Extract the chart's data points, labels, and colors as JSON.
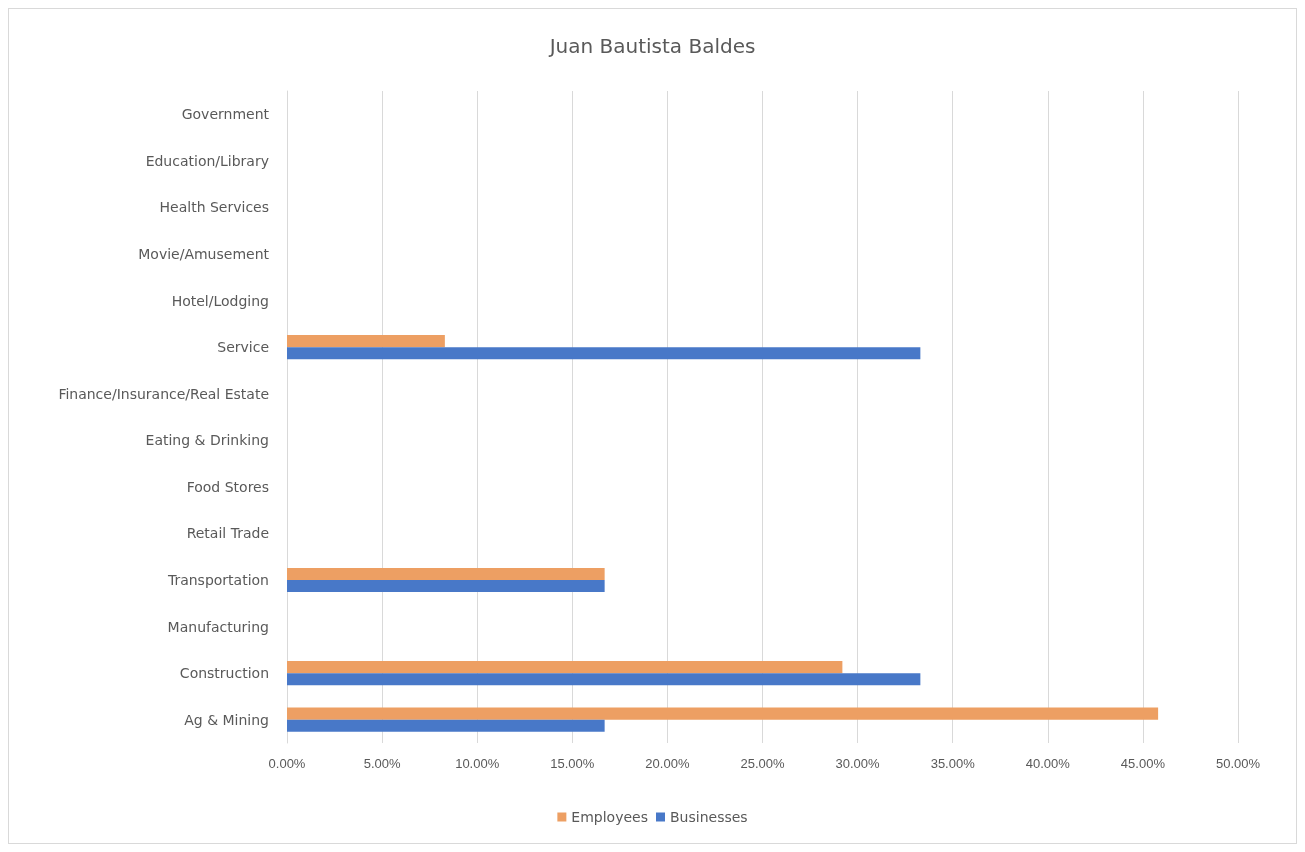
{
  "chart_data": {
    "type": "bar",
    "orientation": "horizontal",
    "title": "Juan Bautista Baldes",
    "categories": [
      "Government",
      "Education/Library",
      "Health Services",
      "Movie/Amusement",
      "Hotel/Lodging",
      "Service",
      "Finance/Insurance/Real Estate",
      "Eating & Drinking",
      "Food Stores",
      "Retail Trade",
      "Transportation",
      "Manufacturing",
      "Construction",
      "Ag & Mining"
    ],
    "series": [
      {
        "name": "Employees",
        "color": "#ed9f63",
        "values": [
          null,
          null,
          null,
          null,
          null,
          8.3,
          null,
          null,
          null,
          null,
          16.7,
          null,
          29.2,
          45.8
        ]
      },
      {
        "name": "Businesses",
        "color": "#4878c8",
        "values": [
          null,
          null,
          null,
          null,
          null,
          33.3,
          null,
          null,
          null,
          null,
          16.7,
          null,
          33.3,
          16.7
        ]
      }
    ],
    "xlim": [
      0,
      50
    ],
    "xticks": [
      {
        "value": 0,
        "label": "0.00%"
      },
      {
        "value": 5,
        "label": "5.00%"
      },
      {
        "value": 10,
        "label": "10.00%"
      },
      {
        "value": 15,
        "label": "15.00%"
      },
      {
        "value": 20,
        "label": "20.00%"
      },
      {
        "value": 25,
        "label": "25.00%"
      },
      {
        "value": 30,
        "label": "30.00%"
      },
      {
        "value": 35,
        "label": "35.00%"
      },
      {
        "value": 40,
        "label": "40.00%"
      },
      {
        "value": 45,
        "label": "45.00%"
      },
      {
        "value": 50,
        "label": "50.00%"
      }
    ],
    "grid": "x",
    "legend": "bottom"
  }
}
